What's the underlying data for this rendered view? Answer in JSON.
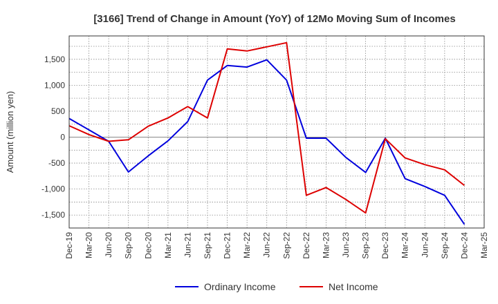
{
  "chart_data": {
    "type": "line",
    "title": "[3166]  Trend of Change in Amount (YoY) of 12Mo Moving Sum of Incomes",
    "ylabel": "Amount (million yen)",
    "xlabel": "",
    "ylim": [
      -1750,
      1950
    ],
    "yticks": [
      1500,
      1000,
      500,
      0,
      -500,
      -1000,
      -1500
    ],
    "ytick_labels": [
      "1,500",
      "1,000",
      "500",
      "0",
      "-500",
      "-1,000",
      "-1,500"
    ],
    "x": [
      "Dec-19",
      "Mar-20",
      "Jun-20",
      "Sep-20",
      "Dec-20",
      "Mar-21",
      "Jun-21",
      "Sep-21",
      "Dec-21",
      "Mar-22",
      "Jun-22",
      "Sep-22",
      "Dec-22",
      "Mar-23",
      "Jun-23",
      "Sep-23",
      "Dec-23",
      "Mar-24",
      "Jun-24",
      "Sep-24",
      "Dec-24",
      "Mar-25"
    ],
    "grid": true,
    "legend_position": "bottom",
    "series": [
      {
        "name": "Ordinary Income",
        "color": "#0000dd",
        "values": [
          360,
          140,
          -80,
          -670,
          -360,
          -70,
          300,
          1100,
          1380,
          1350,
          1490,
          1100,
          -20,
          -20,
          -390,
          -680,
          -20,
          -800,
          -950,
          -1120,
          -1680,
          null
        ]
      },
      {
        "name": "Net Income",
        "color": "#dd0000",
        "values": [
          220,
          50,
          -80,
          -50,
          210,
          370,
          590,
          370,
          1700,
          1660,
          1740,
          1820,
          -1120,
          -970,
          -1200,
          -1460,
          -30,
          -400,
          -530,
          -630,
          -930,
          null
        ]
      }
    ]
  }
}
